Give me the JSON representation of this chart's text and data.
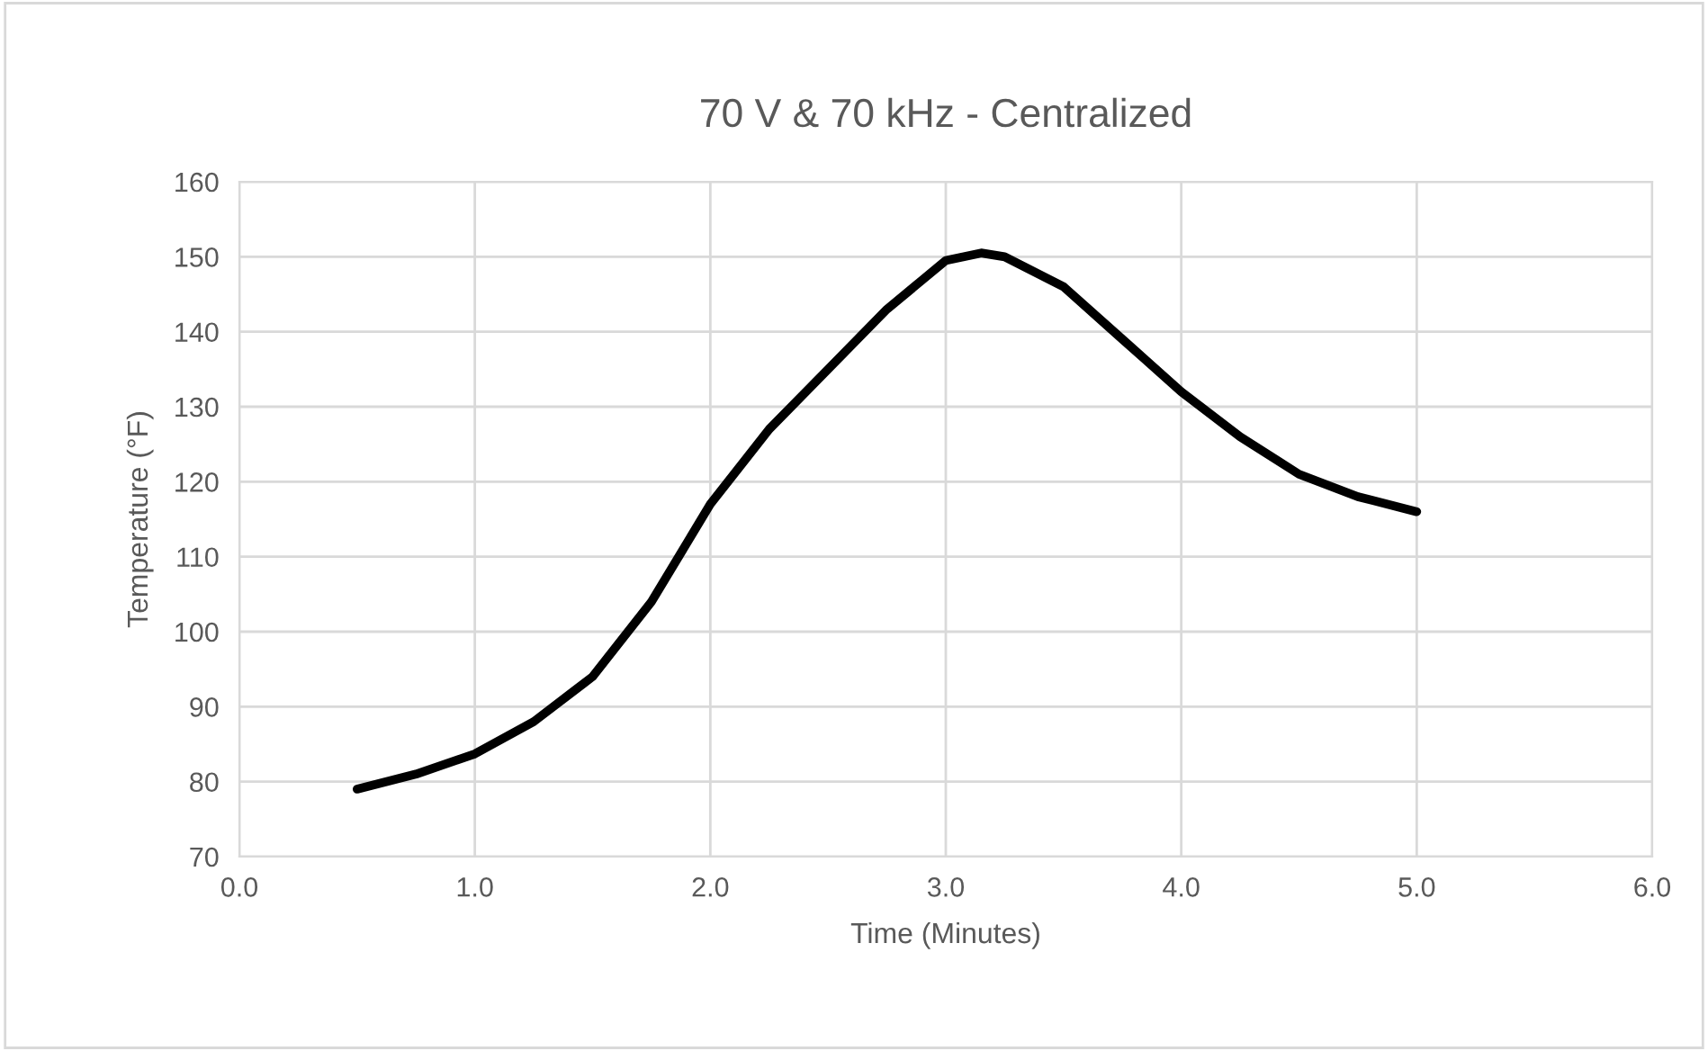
{
  "chart_data": {
    "type": "line",
    "title": "70 V & 70 kHz - Centralized",
    "xlabel": "Time (Minutes)",
    "ylabel": "Temperature (°F)",
    "x": [
      0.5,
      0.75,
      1.0,
      1.25,
      1.5,
      1.75,
      2.0,
      2.25,
      2.5,
      2.75,
      3.0,
      3.15,
      3.25,
      3.5,
      3.75,
      4.0,
      4.25,
      4.5,
      4.75,
      5.0
    ],
    "series": [
      {
        "color": "#000000",
        "values": [
          79,
          81,
          83.7,
          88,
          94,
          104,
          117,
          127,
          135,
          143,
          149.5,
          150.5,
          150,
          146,
          139,
          132,
          126,
          121,
          118,
          116
        ]
      }
    ],
    "xlim": [
      0,
      6
    ],
    "xticks": [
      {
        "value": 0,
        "label": "0.0"
      },
      {
        "value": 1,
        "label": "1.0"
      },
      {
        "value": 2,
        "label": "2.0"
      },
      {
        "value": 3,
        "label": "3.0"
      },
      {
        "value": 4,
        "label": "4.0"
      },
      {
        "value": 5,
        "label": "5.0"
      },
      {
        "value": 6,
        "label": "6.0"
      }
    ],
    "ylim": [
      70,
      160
    ],
    "yticks": [
      70,
      80,
      90,
      100,
      110,
      120,
      130,
      140,
      150,
      160
    ],
    "grid": true,
    "legend": false,
    "marker": "none",
    "line_style": "solid"
  }
}
